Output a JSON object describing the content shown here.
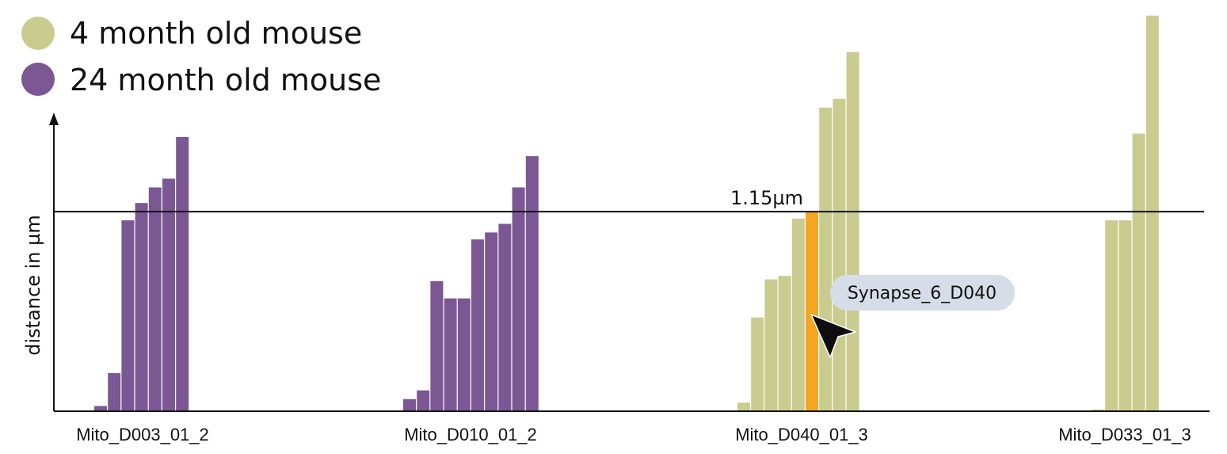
{
  "chart_data": {
    "type": "bar",
    "ylabel": "distance in µm",
    "xlabel": "",
    "reference_line": {
      "value": 1.15,
      "label": "1.15µm"
    },
    "legend": [
      {
        "name": "4 month old mouse",
        "color": "#c9cc8e"
      },
      {
        "name": "24 month old mouse",
        "color": "#7b5794"
      }
    ],
    "highlight_color": "#f5a623",
    "tooltip": {
      "text": "Synapse_6_D040",
      "group": "Mito_D040_01_3",
      "index": 5
    },
    "groups": [
      {
        "label": "Mito_D003_01_2",
        "series": "24 month old mouse",
        "values": [
          0.03,
          0.22,
          1.1,
          1.2,
          1.29,
          1.34,
          1.58
        ]
      },
      {
        "label": "Mito_D010_01_2",
        "series": "24 month old mouse",
        "values": [
          0.07,
          0.12,
          0.75,
          0.65,
          0.65,
          0.99,
          1.03,
          1.08,
          1.29,
          1.47
        ]
      },
      {
        "label": "Mito_D040_01_3",
        "series": "4 month old mouse",
        "values": [
          0.05,
          0.54,
          0.76,
          0.78,
          1.11,
          1.15,
          1.75,
          1.8,
          2.07
        ]
      },
      {
        "label": "Mito_D033_01_3",
        "series": "4 month old mouse",
        "values": [
          0.01,
          1.1,
          1.1,
          1.6,
          2.28
        ]
      }
    ]
  }
}
